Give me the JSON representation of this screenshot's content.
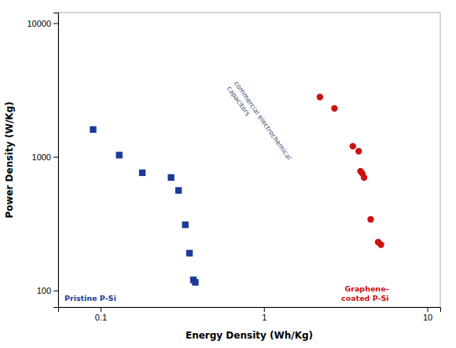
{
  "chart_data": {
    "type": "scatter",
    "log": true,
    "xlabel": "Energy Density (Wh/Kg)",
    "ylabel": "Power Density (W/Kg)",
    "xlim": [
      0.055,
      12
    ],
    "ylim": [
      75,
      12000
    ],
    "xticks": [
      0.1,
      1,
      10
    ],
    "yticks": [
      100,
      1000,
      10000
    ],
    "grid": false,
    "series": [
      {
        "color": "#1a3a99",
        "marker": "square",
        "x": [
          0.09,
          0.13,
          0.18,
          0.27,
          0.3,
          0.33,
          0.35,
          0.37,
          0.38
        ],
        "values": [
          1600,
          1030,
          760,
          700,
          560,
          310,
          190,
          120,
          115
        ]
      },
      {
        "color": "#cc1111",
        "marker": "circle",
        "x": [
          2.2,
          2.7,
          3.5,
          3.8,
          3.9,
          4.0,
          4.1,
          4.5,
          5.0,
          5.2
        ],
        "values": [
          2800,
          2300,
          1200,
          1100,
          780,
          750,
          700,
          340,
          230,
          220
        ]
      }
    ],
    "annotations": [
      {
        "text": "Pristine P-Si",
        "color": "#1a3a99"
      },
      {
        "text": "Graphene-\ncoated P-Si",
        "color": "#cc1111"
      },
      {
        "text": "commercial electrochemical\ncapacitors",
        "color": "#3a4a6a"
      }
    ]
  }
}
